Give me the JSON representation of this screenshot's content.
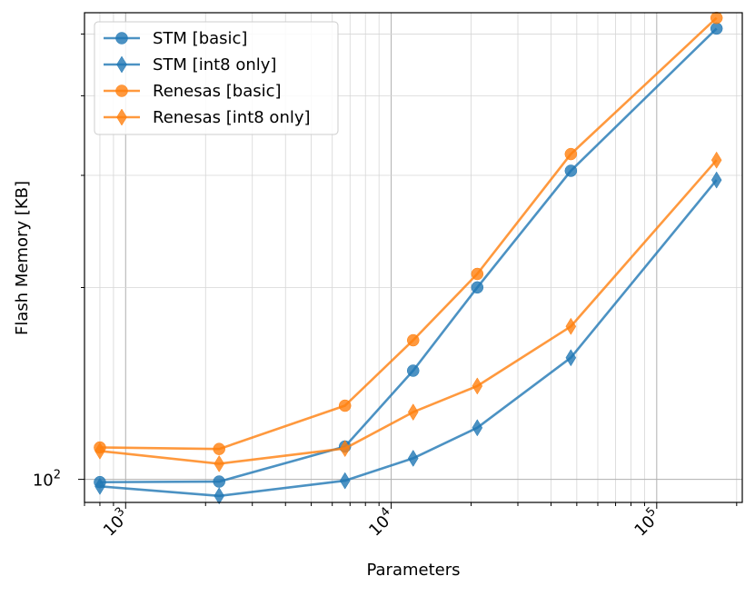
{
  "chart_data": {
    "type": "line",
    "title": "",
    "xlabel": "Parameters",
    "ylabel": "Flash Memory [KB]",
    "xscale": "log",
    "yscale": "log",
    "xlim": [
      700,
      210000
    ],
    "ylim": [
      92,
      540
    ],
    "grid": true,
    "legend_position": "top-left",
    "x_major_ticks": [
      1000,
      10000,
      100000
    ],
    "x_tick_labels": [
      {
        "base": "10",
        "exp": "3"
      },
      {
        "base": "10",
        "exp": "4"
      },
      {
        "base": "10",
        "exp": "5"
      }
    ],
    "y_major_ticks": [
      100
    ],
    "y_tick_labels": [
      {
        "base": "10",
        "exp": "2"
      }
    ],
    "x": [
      800,
      2250,
      6700,
      12100,
      21100,
      47500,
      168000
    ],
    "series": [
      {
        "name": "STM [basic]",
        "marker": "circle",
        "color": "#1f77b4",
        "values": [
          99.0,
          99.2,
          112.6,
          148.1,
          200.1,
          305.0,
          510.0
        ]
      },
      {
        "name": "STM [int8 only]",
        "marker": "diamond",
        "color": "#1f77b4",
        "values": [
          97.5,
          94.2,
          99.5,
          107.9,
          120.5,
          155.2,
          295.0
        ]
      },
      {
        "name": "Renesas [basic]",
        "marker": "circle",
        "color": "#ff7f0e",
        "values": [
          112.2,
          111.6,
          130.5,
          165.3,
          210.1,
          324.0,
          530.0
        ]
      },
      {
        "name": "Renesas [int8 only]",
        "marker": "diamond",
        "color": "#ff7f0e",
        "values": [
          110.8,
          105.8,
          111.8,
          127.5,
          140.1,
          173.8,
          317.0
        ]
      }
    ]
  }
}
